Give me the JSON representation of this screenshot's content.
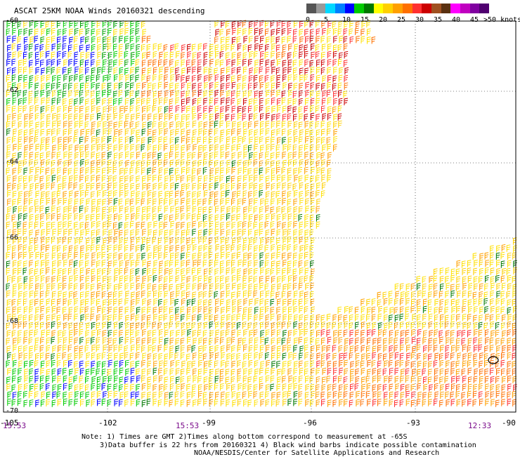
{
  "title": "ASCAT 25KM NOAA Winds 20160321 descending",
  "colorbar": {
    "colors": [
      "#555555",
      "#999999",
      "#00d8ff",
      "#0080ff",
      "#0000ff",
      "#00cc00",
      "#007800",
      "#ffff00",
      "#ffd000",
      "#ffa000",
      "#ff7000",
      "#ff3030",
      "#cc0000",
      "#a05020",
      "#5a3010",
      "#ff00ff",
      "#c000c0",
      "#8000a0",
      "#500070"
    ],
    "labels": [
      "0",
      "5",
      "10",
      "15",
      "20",
      "25",
      "30",
      "35",
      "40",
      "45"
    ],
    "unit": ">50 knots"
  },
  "lat_labels": [
    "-60",
    "-62",
    "-64",
    "-66",
    "-68",
    "-70"
  ],
  "lon_labels": [
    "-105",
    "-102",
    "-99",
    "-96",
    "-93",
    "-90"
  ],
  "time_labels": [
    "15:53",
    "15:53",
    "12:33"
  ],
  "notes": [
    "Note: 1) Times are GMT 2)Times along bottom correspond to measurement at -65S",
    "3)Data buffer is 22 hrs from 20160321 4) Black wind barbs indicate possible contamination",
    "NOAA/NESDIS/Center for Satellite Applications and Research"
  ]
}
